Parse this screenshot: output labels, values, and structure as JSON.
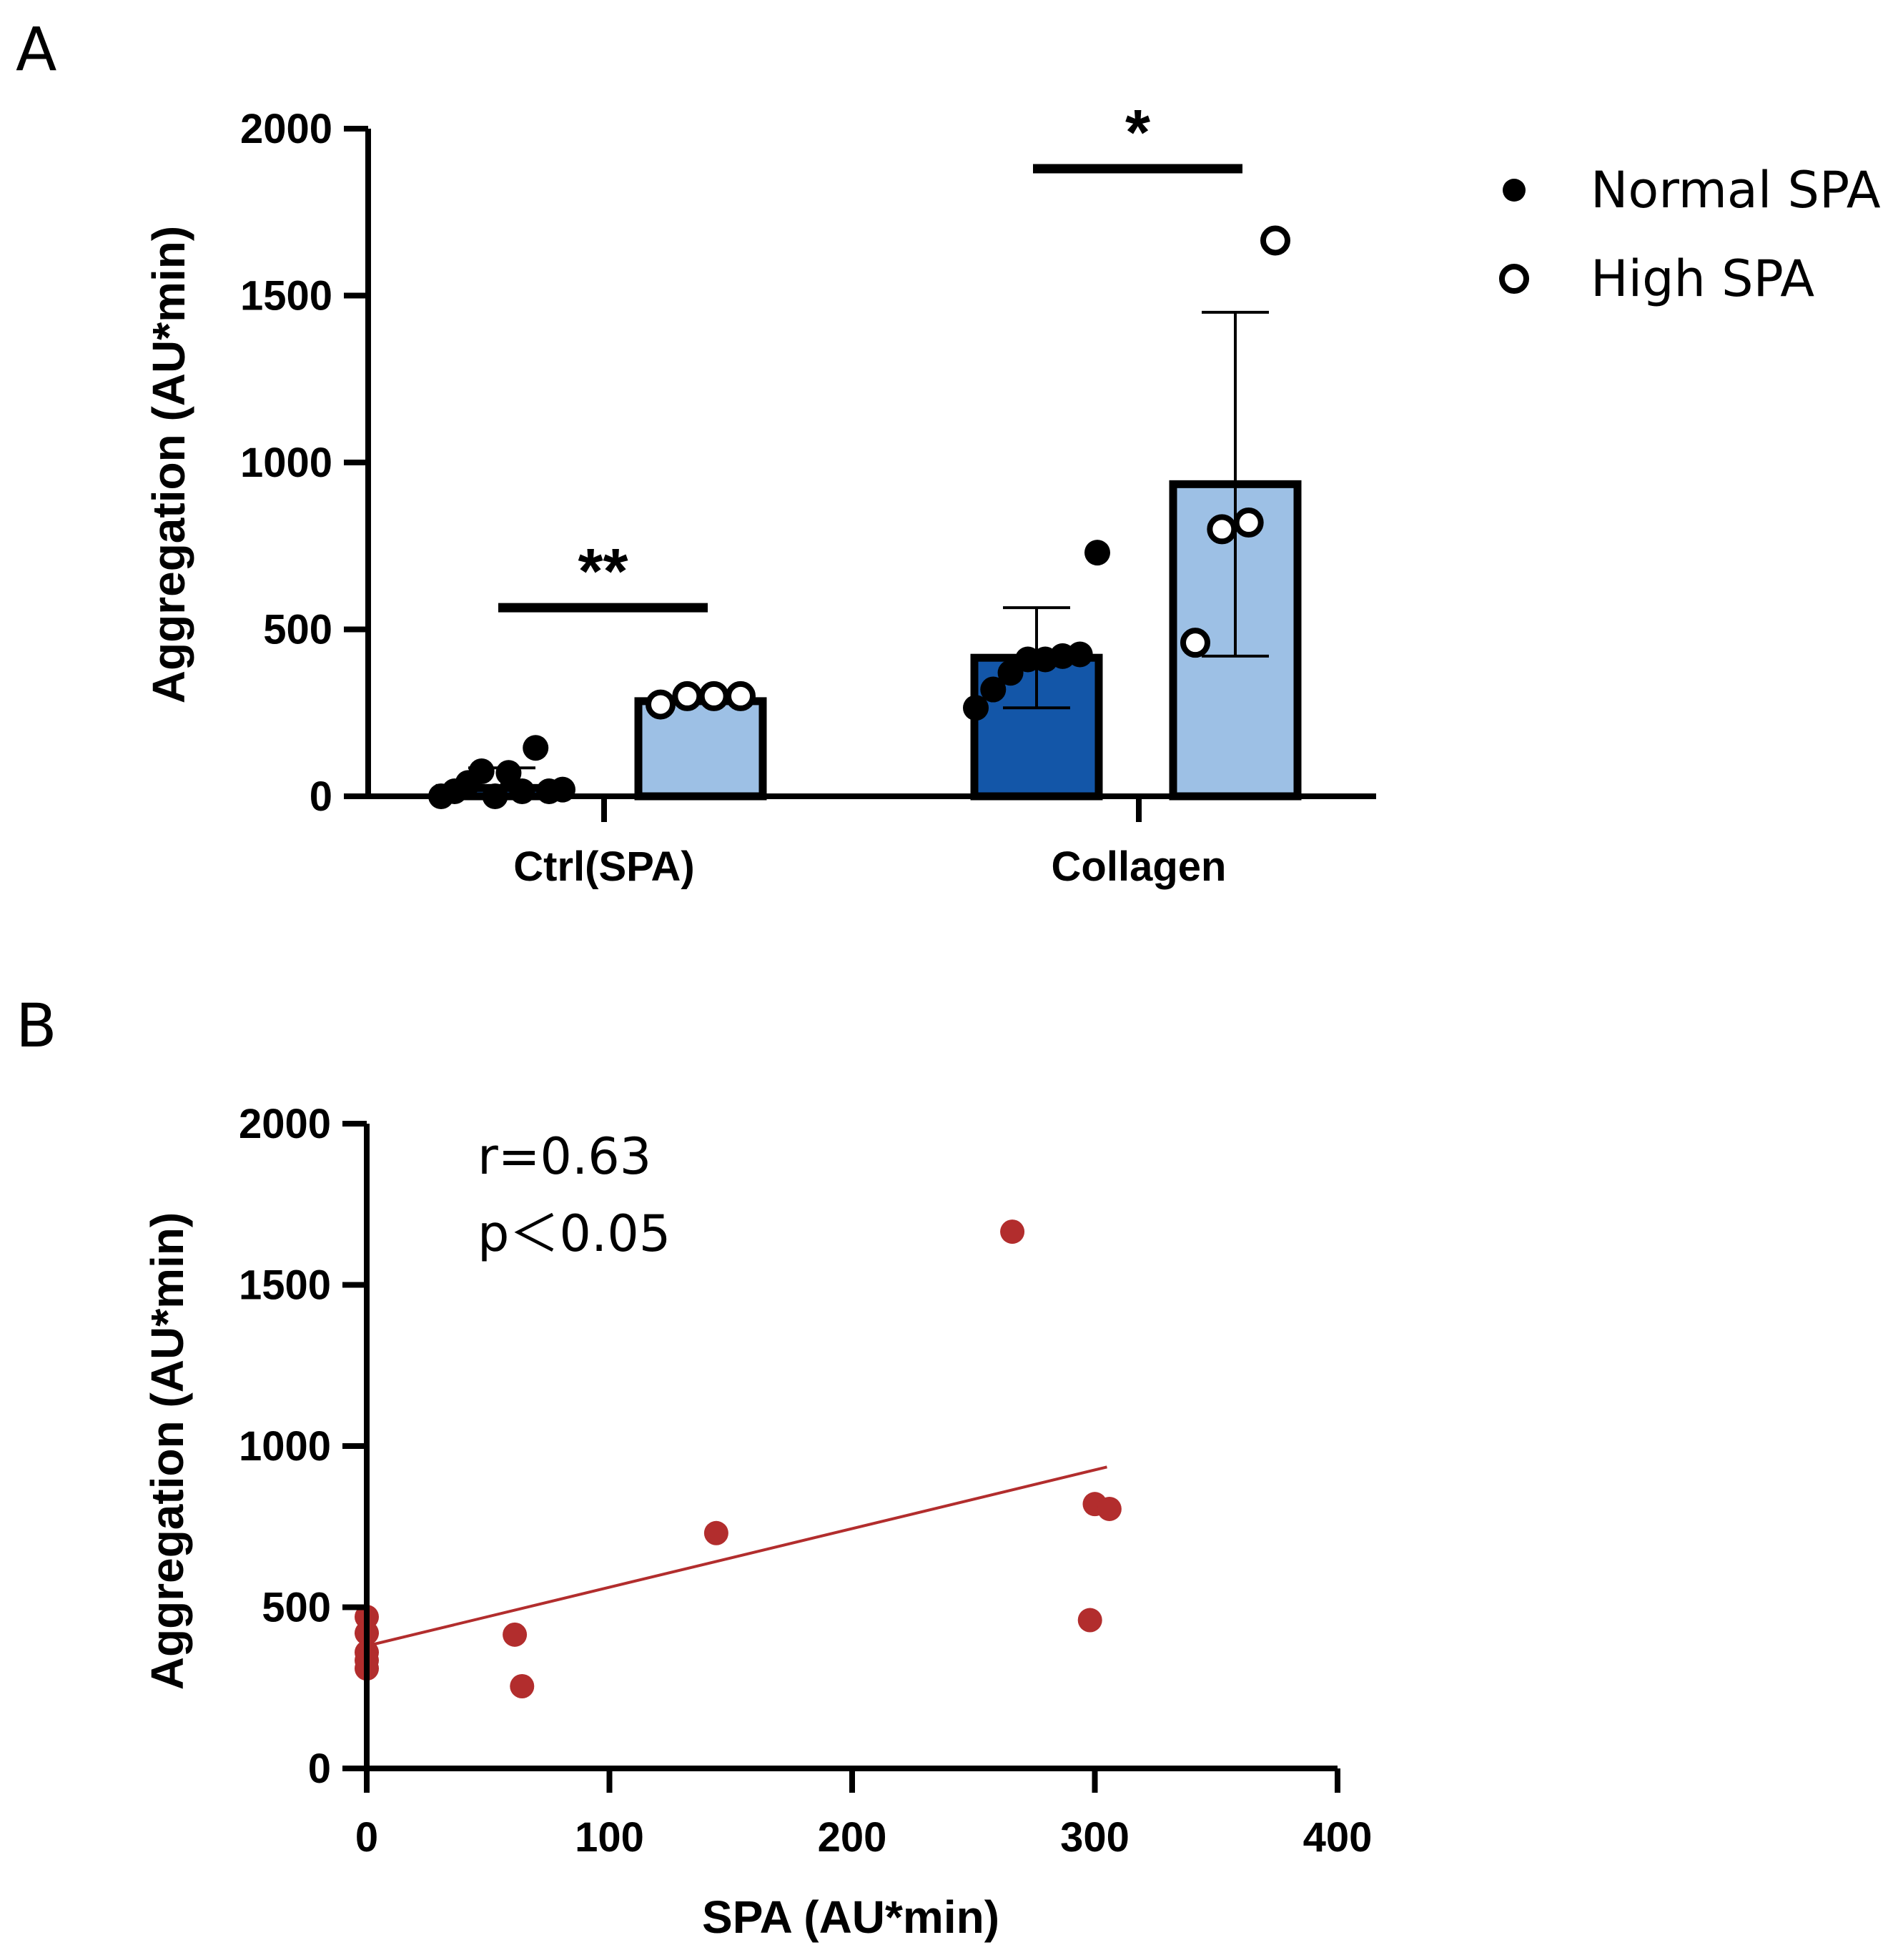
{
  "panels": {
    "a_label": "A",
    "b_label": "B"
  },
  "chart_data": [
    {
      "type": "bar",
      "panel": "A",
      "ylabel": "Aggregation (AU*min)",
      "xlabel": "",
      "ylim": [
        0,
        2000
      ],
      "yticks": [
        0,
        500,
        1000,
        1500,
        2000
      ],
      "categories": [
        "Ctrl(SPA)",
        "Collagen"
      ],
      "series": [
        {
          "name": "Normal SPA",
          "marker": "filled-circle",
          "bar_color": "#1356a8",
          "values": [
            25,
            415
          ],
          "sd": [
            60,
            150
          ],
          "points": [
            [
              0,
              15,
              40,
              75,
              0,
              70,
              15,
              145,
              15,
              20
            ],
            [
              265,
              320,
              370,
              410,
              410,
              420,
              425,
              730
            ]
          ]
        },
        {
          "name": "High SPA",
          "marker": "open-circle",
          "bar_color": "#9dc0e5",
          "values": [
            285,
            935
          ],
          "sd": [
            0,
            515
          ],
          "points": [
            [
              275,
              300,
              300,
              300
            ],
            [
              460,
              800,
              820,
              1665
            ]
          ]
        }
      ],
      "significance": [
        {
          "category": "Ctrl(SPA)",
          "label": "**",
          "y": 565
        },
        {
          "category": "Collagen",
          "label": "*",
          "y": 1880
        }
      ],
      "legend_position": "top-right"
    },
    {
      "type": "scatter",
      "panel": "B",
      "ylabel": "Aggregation (AU*min)",
      "xlabel": "SPA (AU*min)",
      "xlim": [
        0,
        400
      ],
      "ylim": [
        0,
        2000
      ],
      "xticks": [
        0,
        100,
        200,
        300,
        400
      ],
      "yticks": [
        0,
        500,
        1000,
        1500,
        2000
      ],
      "point_color": "#b22d2d",
      "points": [
        {
          "x": 0,
          "y": 470
        },
        {
          "x": 0,
          "y": 420
        },
        {
          "x": 0,
          "y": 360
        },
        {
          "x": 0,
          "y": 335
        },
        {
          "x": 0,
          "y": 310
        },
        {
          "x": 61,
          "y": 415
        },
        {
          "x": 64,
          "y": 255
        },
        {
          "x": 144,
          "y": 730
        },
        {
          "x": 266,
          "y": 1665
        },
        {
          "x": 298,
          "y": 460
        },
        {
          "x": 300,
          "y": 820
        },
        {
          "x": 306,
          "y": 805
        }
      ],
      "fit_line": {
        "x": [
          0,
          305
        ],
        "y": [
          380,
          935
        ]
      },
      "annotations": [
        "r=0.63",
        "p＜0.05"
      ]
    }
  ]
}
